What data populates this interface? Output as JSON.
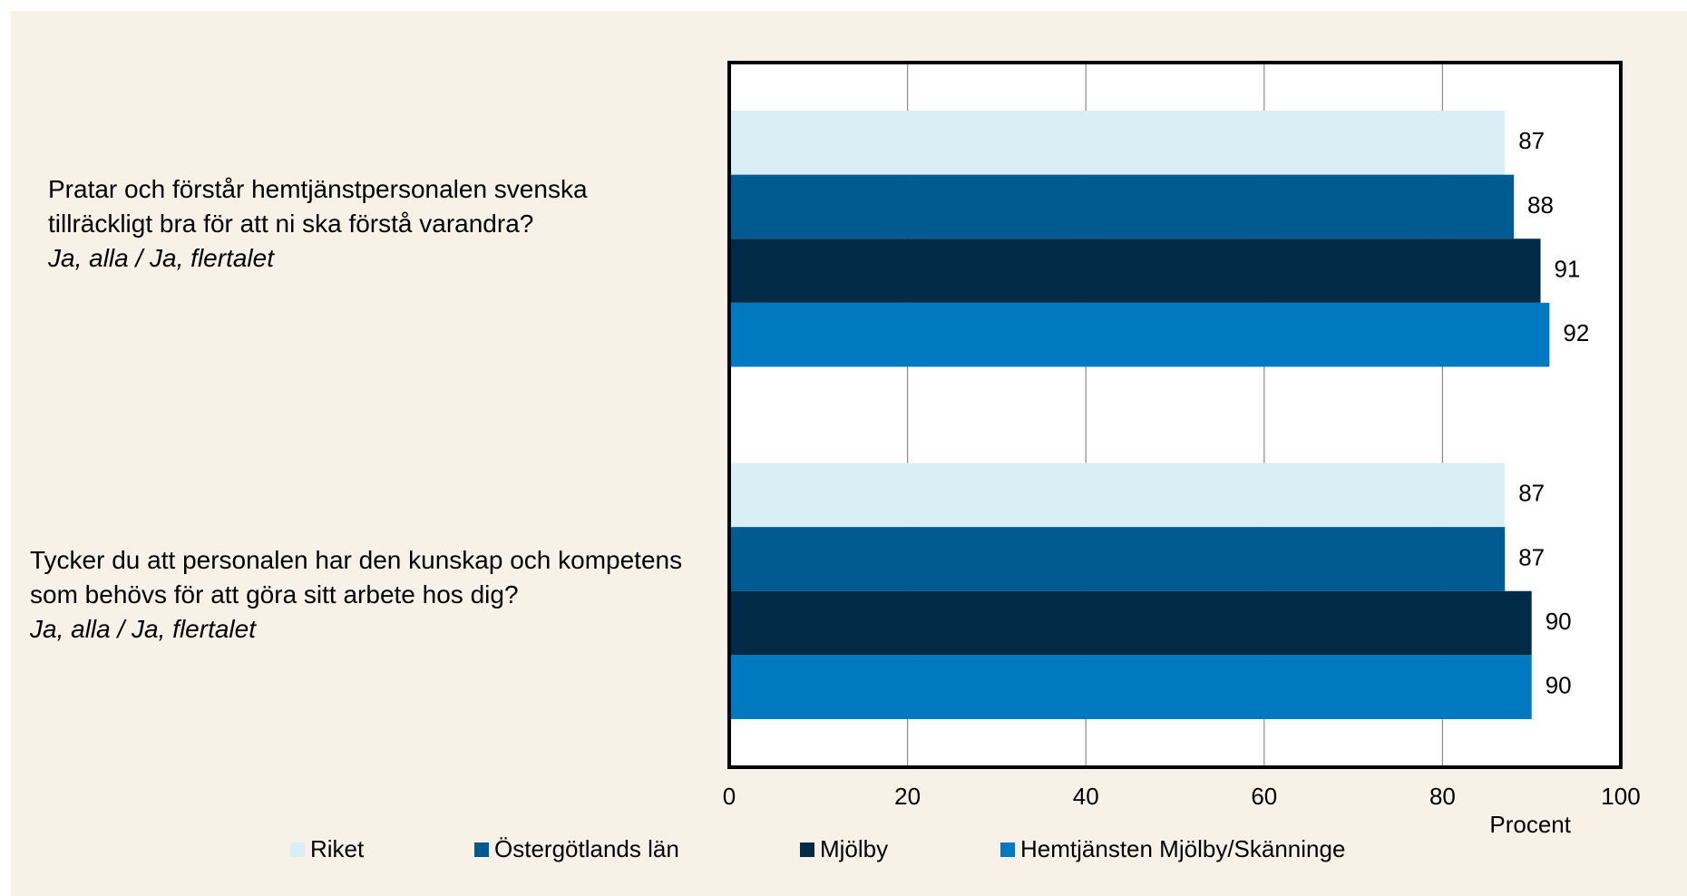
{
  "chart_data": {
    "type": "barh",
    "categories": [
      "Pratar och förstår hemtjänstpersonalen svenska tillräckligt bra för att ni ska förstå varandra?",
      "Tycker du att personalen har den kunskap och kompetens som behövs för att göra sitt arbete hos dig?"
    ],
    "category_notes": [
      "Ja, alla / Ja, flertalet",
      "Ja, alla / Ja, flertalet"
    ],
    "series": [
      {
        "name": "Riket",
        "color": "#daeef6",
        "values": [
          87,
          87
        ]
      },
      {
        "name": "Östergötlands län",
        "color": "#005a92",
        "values": [
          88,
          87
        ]
      },
      {
        "name": "Mjölby",
        "color": "#002a45",
        "values": [
          91,
          90
        ]
      },
      {
        "name": "Hemtjänsten Mjölby/Skänninge",
        "color": "#0079c1",
        "values": [
          92,
          90
        ]
      }
    ],
    "xlabel": "Procent",
    "xlim": [
      0,
      100
    ],
    "xticks": [
      0,
      20,
      40,
      60,
      80,
      100
    ],
    "grid": true,
    "legend": "bottom"
  }
}
